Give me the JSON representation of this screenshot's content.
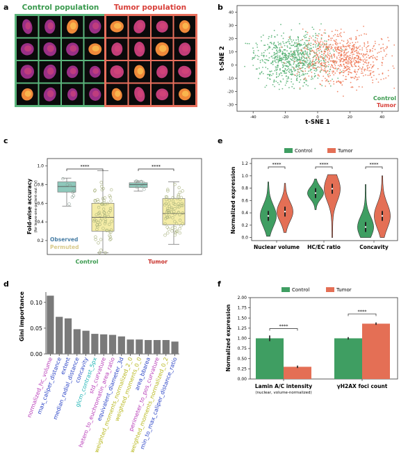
{
  "panels": [
    "a",
    "b",
    "c",
    "d",
    "e",
    "f"
  ],
  "panel_a": {
    "control_title": "Control population",
    "tumor_title": "Tumor population",
    "control_color": "#2e9e4e",
    "tumor_color": "#e0453a",
    "control_frame": "#5bb57c",
    "tumor_frame": "#e8705d"
  },
  "chart_data": [
    {
      "id": "b",
      "type": "scatter",
      "xlabel": "t-SNE 1",
      "ylabel": "t-SNE 2",
      "xlim": [
        -50,
        50
      ],
      "ylim": [
        -35,
        45
      ],
      "xticks": [
        -40,
        -20,
        0,
        20,
        40
      ],
      "yticks": [
        -30,
        -20,
        -10,
        0,
        10,
        20,
        30,
        40
      ],
      "legend": [
        "Control",
        "Tumor"
      ],
      "legend_position": "bottom-right",
      "series_colors": [
        "#4fae6e",
        "#ee7552"
      ]
    },
    {
      "id": "c",
      "type": "box",
      "ylabel": "Fold-wise accuracy",
      "ylabel_sub": "(for leave-one-patient-out CV)",
      "categories": [
        "Control",
        "Tumor"
      ],
      "ylim": [
        0.05,
        1.08
      ],
      "yticks": [
        "0.2",
        "0.4",
        "0.6",
        "0.8",
        "1.0"
      ],
      "yticks_num": [
        0.2,
        0.4,
        0.6,
        0.8,
        1.0
      ],
      "legend": [
        "Observed",
        "Permuted"
      ],
      "significance": "****",
      "boxes": [
        {
          "group": "Control",
          "kind": "Observed",
          "q1": 0.72,
          "median": 0.78,
          "q3": 0.83,
          "wlo": 0.57,
          "whi": 0.87
        },
        {
          "group": "Control",
          "kind": "Permuted",
          "q1": 0.3,
          "median": 0.45,
          "q3": 0.6,
          "wlo": 0.07,
          "whi": 0.95
        },
        {
          "group": "Tumor",
          "kind": "Observed",
          "q1": 0.77,
          "median": 0.8,
          "q3": 0.82,
          "wlo": 0.73,
          "whi": 0.84
        },
        {
          "group": "Tumor",
          "kind": "Permuted",
          "q1": 0.37,
          "median": 0.49,
          "q3": 0.65,
          "wlo": 0.16,
          "whi": 0.83
        }
      ]
    },
    {
      "id": "d",
      "type": "bar",
      "ylabel": "Gini importance",
      "ylim": [
        0,
        0.12
      ],
      "yticks": [
        "0.00",
        "0.05",
        "0.10"
      ],
      "yticks_num": [
        0,
        0.05,
        0.1
      ],
      "categories": [
        "normalized_hc_volume",
        "max_caliper_distance",
        "extent",
        "median_radial_distance",
        "concavity",
        "glcm_contrast_5px",
        "std_curvature",
        "hetero_to_euchromatin_area_ratio",
        "equivalent_diameter_3d",
        "weighted_moments_normalized_2_0",
        "weighted_moments_0_0",
        "area_bbarea",
        "perimeter_to_pos_curvature",
        "weighted_moments_normalized_0_2",
        "min_to_max_caliper_distance_ratio"
      ],
      "values": [
        0.113,
        0.072,
        0.069,
        0.048,
        0.045,
        0.039,
        0.038,
        0.037,
        0.034,
        0.028,
        0.028,
        0.027,
        0.027,
        0.027,
        0.024
      ],
      "label_colors": [
        "#b83cb8",
        "#2b44c6",
        "#2b44c6",
        "#2b44c6",
        "#2b44c6",
        "#1fb5b5",
        "#b83cb8",
        "#b83cb8",
        "#2b44c6",
        "#b8b81e",
        "#b8b81e",
        "#2b44c6",
        "#b83cb8",
        "#b8b81e",
        "#2b44c6"
      ]
    },
    {
      "id": "e",
      "type": "violin",
      "ylabel": "Normalized expression",
      "categories": [
        "Nuclear volume",
        "HC/EC ratio",
        "Concavity"
      ],
      "ylim": [
        -0.05,
        1.28
      ],
      "yticks": [
        "0.0",
        "0.2",
        "0.4",
        "0.6",
        "0.8",
        "1.0",
        "1.2"
      ],
      "yticks_num": [
        0,
        0.2,
        0.4,
        0.6,
        0.8,
        1.0,
        1.2
      ],
      "legend": [
        "Control",
        "Tumor"
      ],
      "significance": "****",
      "series": [
        {
          "name": "Control",
          "medians": [
            0.35,
            0.72,
            0.17
          ],
          "mins": [
            0.02,
            0.45,
            0.0
          ],
          "maxs": [
            0.9,
            0.95,
            0.86
          ]
        },
        {
          "name": "Tumor",
          "medians": [
            0.42,
            0.79,
            0.35
          ],
          "mins": [
            0.08,
            0.0,
            0.0
          ],
          "maxs": [
            0.88,
            1.02,
            1.0
          ]
        }
      ]
    },
    {
      "id": "f",
      "type": "bar",
      "ylabel": "Normalized expression",
      "categories": [
        "Lamin A/C intensity",
        "γH2AX foci count"
      ],
      "category_sub": [
        "(nuclear, volume-normalized)",
        ""
      ],
      "ylim": [
        0,
        2.0
      ],
      "yticks": [
        "0.00",
        "0.25",
        "0.50",
        "0.75",
        "1.00",
        "1.25",
        "1.50",
        "1.75",
        "2.00"
      ],
      "yticks_num": [
        0,
        0.25,
        0.5,
        0.75,
        1.0,
        1.25,
        1.5,
        1.75,
        2.0
      ],
      "legend": [
        "Control",
        "Tumor"
      ],
      "significance": "****",
      "series": [
        {
          "name": "Control",
          "values": [
            1.0,
            1.0
          ],
          "err": [
            0.07,
            0.03
          ]
        },
        {
          "name": "Tumor",
          "values": [
            0.3,
            1.36
          ],
          "err": [
            0.03,
            0.03
          ]
        }
      ]
    }
  ]
}
